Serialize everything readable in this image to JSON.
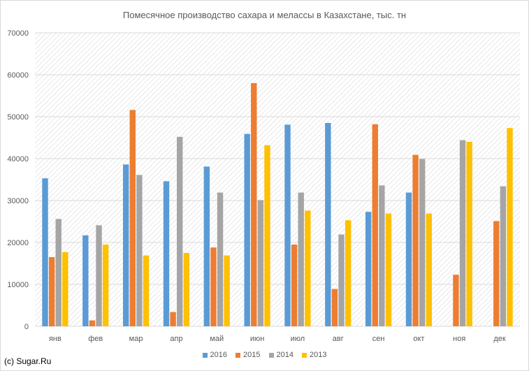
{
  "colors": {
    "2016": "#5b9bd5",
    "2015": "#ed7d31",
    "2014": "#a5a5a5",
    "2013": "#ffc000",
    "hatch": "#d9d9d9",
    "axis_text": "#595959"
  },
  "credit": "(c) Sugar.Ru",
  "chart_data": {
    "type": "bar",
    "title": "Помесячное производство сахара и мелассы в Казахстане, тыс. тн",
    "xlabel": "",
    "ylabel": "",
    "ylim": [
      0,
      70000
    ],
    "yticks": [
      0,
      10000,
      20000,
      30000,
      40000,
      50000,
      60000,
      70000
    ],
    "grid": true,
    "legend_position": "bottom",
    "categories": [
      "янв",
      "фев",
      "мар",
      "апр",
      "май",
      "июн",
      "июл",
      "авг",
      "сен",
      "окт",
      "ноя",
      "дек"
    ],
    "series": [
      {
        "name": "2016",
        "values": [
          35300,
          21700,
          38600,
          34600,
          38100,
          45900,
          48100,
          48500,
          27300,
          31900,
          null,
          null
        ]
      },
      {
        "name": "2015",
        "values": [
          16500,
          1400,
          51600,
          3400,
          18800,
          58000,
          19500,
          8900,
          48200,
          40900,
          12300,
          25100
        ]
      },
      {
        "name": "2014",
        "values": [
          25600,
          24100,
          36100,
          45200,
          31900,
          30100,
          31900,
          21900,
          33600,
          39900,
          44400,
          33400
        ]
      },
      {
        "name": "2013",
        "values": [
          17700,
          19500,
          16900,
          17500,
          16900,
          43200,
          27600,
          25300,
          26900,
          26900,
          44000,
          47300
        ]
      }
    ]
  }
}
